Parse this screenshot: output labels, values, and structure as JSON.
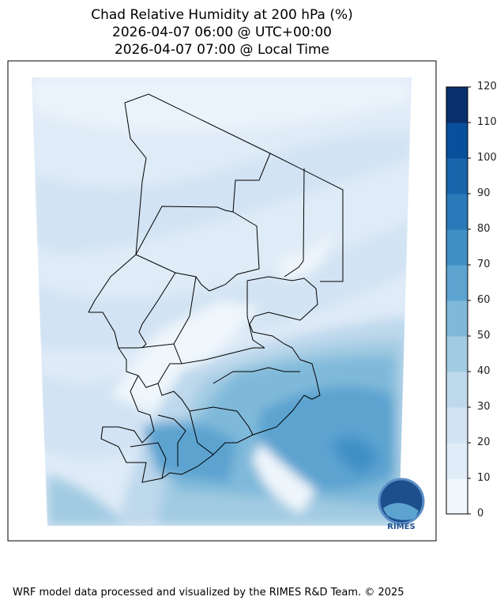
{
  "title": {
    "line1": "Chad Relative Humidity at 200 hPa (%)",
    "line2": "2026-04-07 06:00 @ UTC+00:00",
    "line3": "2026-04-07 07:00 @ Local Time"
  },
  "colorbar": {
    "ticks": [
      "0",
      "10",
      "20",
      "30",
      "40",
      "50",
      "60",
      "70",
      "80",
      "90",
      "100",
      "110",
      "120"
    ],
    "levels": [
      0,
      10,
      20,
      30,
      40,
      50,
      60,
      70,
      80,
      90,
      100,
      110,
      120
    ],
    "colors": [
      "#eff6fc",
      "#e0ecf8",
      "#d2e3f3",
      "#bed8ec",
      "#a1cbe2",
      "#7fb9da",
      "#5ca3d0",
      "#3f8fc5",
      "#2a7aba",
      "#1764ab",
      "#08509b",
      "#08306b"
    ]
  },
  "logo": {
    "text": "RIMES"
  },
  "footer": "WRF model data processed and visualized by the RIMES R&D Team. © 2025"
}
